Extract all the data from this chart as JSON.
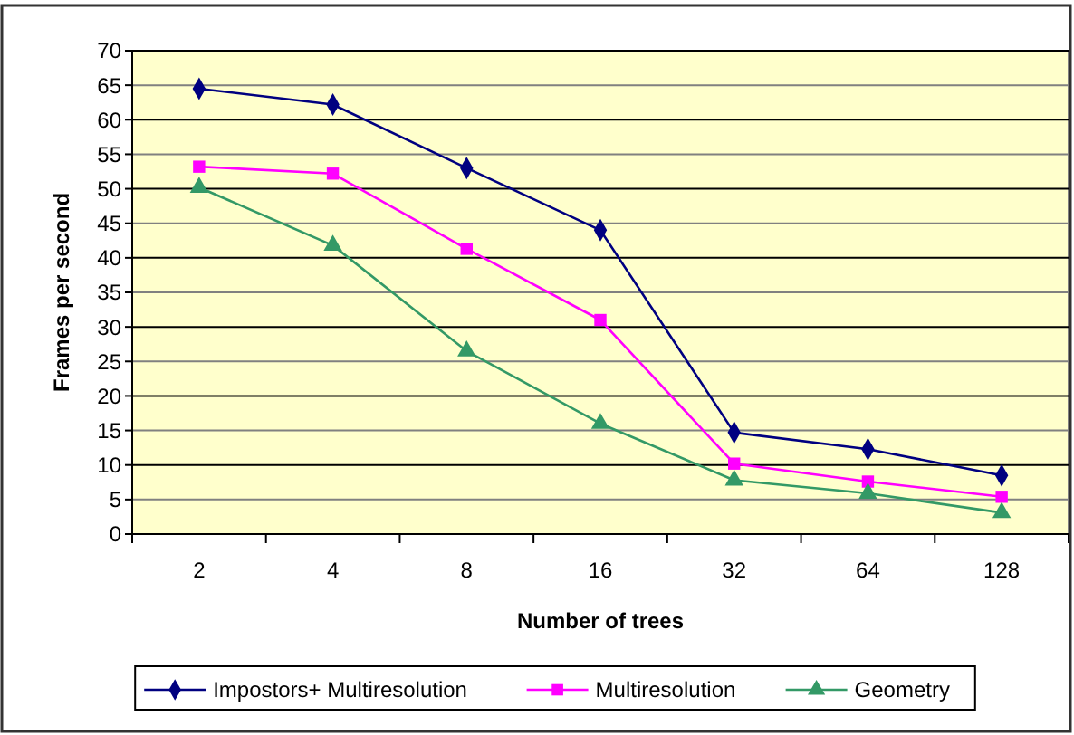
{
  "chart_data": {
    "type": "line",
    "xlabel": "Number of trees",
    "ylabel": "Frames per second",
    "categories": [
      "2",
      "4",
      "8",
      "16",
      "32",
      "64",
      "128"
    ],
    "series": [
      {
        "name": "Impostors+ Multiresolution",
        "color": "#000080",
        "marker": "diamond",
        "values": [
          64.5,
          62.2,
          53,
          44,
          14.7,
          12.3,
          8.5
        ]
      },
      {
        "name": "Multiresolution",
        "color": "#ff00ff",
        "marker": "square",
        "values": [
          53.2,
          52.2,
          41.3,
          31,
          10.2,
          7.6,
          5.4
        ]
      },
      {
        "name": "Geometry",
        "color": "#339966",
        "marker": "triangle",
        "values": [
          50.2,
          41.8,
          26.5,
          16,
          7.8,
          5.9,
          3.1
        ]
      }
    ],
    "ylim": [
      0,
      70
    ],
    "yticks": [
      0,
      5,
      10,
      15,
      20,
      25,
      30,
      35,
      40,
      45,
      50,
      55,
      60,
      65,
      70
    ],
    "grid": "y",
    "legend": "bottom",
    "line_style": "solid"
  }
}
